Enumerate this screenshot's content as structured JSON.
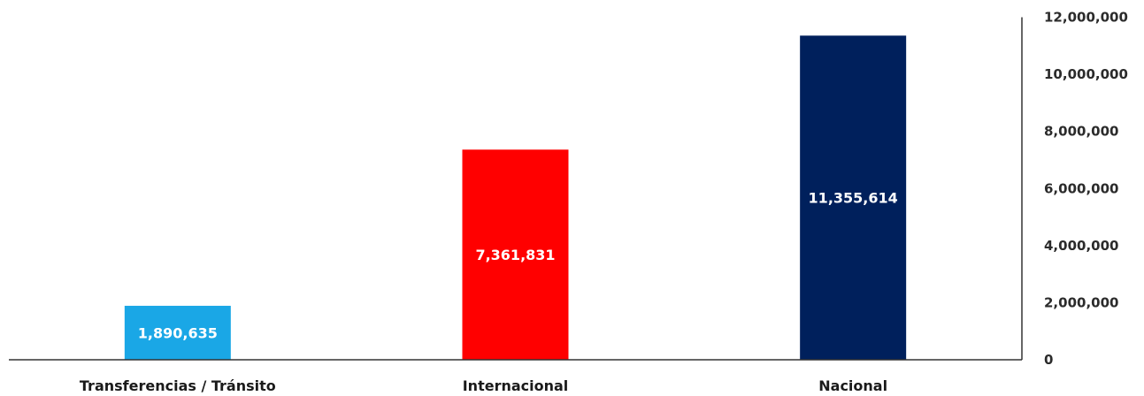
{
  "chart_data": {
    "type": "bar",
    "categories": [
      "Transferencias / Tránsito",
      "Internacional",
      "Nacional"
    ],
    "values": [
      1890635,
      7361831,
      11355614
    ],
    "data_labels": [
      "1,890,635",
      "7,361,831",
      "11,355,614"
    ],
    "colors": [
      "#1aa7e6",
      "#ff0000",
      "#00205c"
    ],
    "ylim": [
      0,
      12000000
    ],
    "yticks": [
      0,
      2000000,
      4000000,
      6000000,
      8000000,
      10000000,
      12000000
    ],
    "ytick_labels": [
      "0",
      "2,000,000",
      "4,000,000",
      "6,000,000",
      "8,000,000",
      "10,000,000",
      "12,000,000"
    ],
    "y_axis_side": "right",
    "grid": false,
    "legend": "none"
  }
}
